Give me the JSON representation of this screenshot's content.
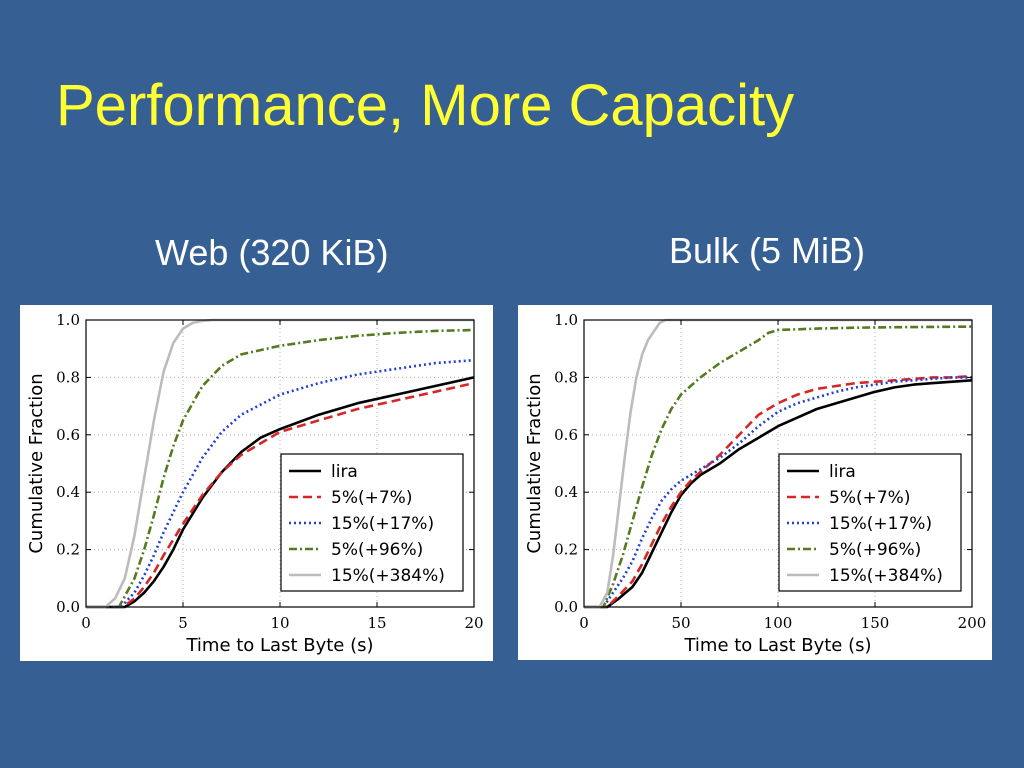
{
  "slide": {
    "title": "Performance, More Capacity",
    "subtitle_web": "Web (320 KiB)",
    "subtitle_bulk": "Bulk (5 MiB)"
  },
  "chart_data": [
    {
      "type": "line",
      "title": "Web (320 KiB)",
      "xlabel": "Time to Last Byte (s)",
      "ylabel": "Cumulative Fraction",
      "xlim": [
        0,
        20
      ],
      "ylim": [
        0,
        1
      ],
      "xticks": [
        0,
        5,
        10,
        15,
        20
      ],
      "yticks": [
        "0.0",
        "0.2",
        "0.4",
        "0.6",
        "0.8",
        "1.0"
      ],
      "grid": true,
      "legend_position": "lower-right",
      "series": [
        {
          "name": "lira",
          "color": "#000000",
          "dash": "solid",
          "x": [
            0,
            2.0,
            2.5,
            3.0,
            3.5,
            4.0,
            4.5,
            5.0,
            6.0,
            7.0,
            8.0,
            9.0,
            10.0,
            12.0,
            14.0,
            16.0,
            18.0,
            20.0
          ],
          "y": [
            0,
            0.0,
            0.02,
            0.05,
            0.09,
            0.14,
            0.2,
            0.27,
            0.38,
            0.47,
            0.54,
            0.59,
            0.62,
            0.67,
            0.71,
            0.74,
            0.77,
            0.8
          ]
        },
        {
          "name": "5%(+7%)",
          "color": "#d62728",
          "dash": "dashed",
          "x": [
            0,
            1.9,
            2.5,
            3.0,
            3.5,
            4.0,
            5.0,
            6.0,
            7.0,
            8.0,
            9.0,
            10.0,
            12.0,
            14.0,
            16.0,
            18.0,
            20.0
          ],
          "y": [
            0,
            0.0,
            0.03,
            0.07,
            0.12,
            0.18,
            0.29,
            0.39,
            0.47,
            0.53,
            0.57,
            0.61,
            0.65,
            0.69,
            0.72,
            0.75,
            0.78
          ]
        },
        {
          "name": "15%(+17%)",
          "color": "#1f3fd6",
          "dash": "dotted",
          "x": [
            0,
            1.8,
            2.5,
            3.0,
            3.5,
            4.0,
            5.0,
            6.0,
            7.0,
            8.0,
            10.0,
            12.0,
            14.0,
            16.0,
            18.0,
            20.0
          ],
          "y": [
            0,
            0.0,
            0.05,
            0.11,
            0.18,
            0.26,
            0.4,
            0.52,
            0.61,
            0.67,
            0.74,
            0.78,
            0.81,
            0.83,
            0.85,
            0.86
          ]
        },
        {
          "name": "5%(+96%)",
          "color": "#557a1f",
          "dash": "dashdot",
          "x": [
            0,
            1.7,
            2.5,
            3.0,
            3.5,
            4.0,
            4.5,
            5.0,
            6.0,
            7.0,
            8.0,
            10.0,
            12.0,
            14.0,
            16.0,
            18.0,
            20.0
          ],
          "y": [
            0,
            0.0,
            0.1,
            0.2,
            0.32,
            0.45,
            0.56,
            0.65,
            0.77,
            0.84,
            0.88,
            0.91,
            0.93,
            0.945,
            0.955,
            0.962,
            0.965
          ]
        },
        {
          "name": "15%(+384%)",
          "color": "#bcbcbc",
          "dash": "solid",
          "x": [
            0,
            1.0,
            1.5,
            2.0,
            2.5,
            3.0,
            3.5,
            4.0,
            4.5,
            5.0,
            5.5,
            6.0,
            6.5,
            7.0,
            20.0
          ],
          "y": [
            0,
            0.0,
            0.03,
            0.1,
            0.25,
            0.45,
            0.65,
            0.82,
            0.92,
            0.97,
            0.99,
            0.997,
            1.0,
            1.0,
            1.0
          ]
        }
      ]
    },
    {
      "type": "line",
      "title": "Bulk (5 MiB)",
      "xlabel": "Time to Last Byte (s)",
      "ylabel": "Cumulative Fraction",
      "xlim": [
        0,
        200
      ],
      "ylim": [
        0,
        1
      ],
      "xticks": [
        0,
        50,
        100,
        150,
        200
      ],
      "yticks": [
        "0.0",
        "0.2",
        "0.4",
        "0.6",
        "0.8",
        "1.0"
      ],
      "grid": true,
      "legend_position": "lower-right",
      "series": [
        {
          "name": "lira",
          "color": "#000000",
          "dash": "solid",
          "x": [
            0,
            12,
            18,
            25,
            30,
            35,
            40,
            45,
            50,
            55,
            60,
            70,
            80,
            90,
            100,
            110,
            120,
            130,
            140,
            150,
            160,
            170,
            180,
            190,
            200
          ],
          "y": [
            0,
            0.0,
            0.03,
            0.07,
            0.12,
            0.19,
            0.26,
            0.33,
            0.39,
            0.43,
            0.46,
            0.5,
            0.55,
            0.59,
            0.63,
            0.66,
            0.69,
            0.71,
            0.73,
            0.75,
            0.765,
            0.775,
            0.78,
            0.785,
            0.79
          ]
        },
        {
          "name": "5%(+7%)",
          "color": "#d62728",
          "dash": "dashed",
          "x": [
            0,
            12,
            18,
            25,
            30,
            35,
            40,
            45,
            50,
            55,
            60,
            70,
            80,
            90,
            100,
            110,
            120,
            130,
            140,
            150,
            160,
            170,
            180,
            190,
            200
          ],
          "y": [
            0,
            0.0,
            0.04,
            0.09,
            0.15,
            0.22,
            0.29,
            0.35,
            0.4,
            0.44,
            0.47,
            0.53,
            0.6,
            0.67,
            0.71,
            0.74,
            0.76,
            0.77,
            0.78,
            0.785,
            0.79,
            0.795,
            0.8,
            0.8,
            0.805
          ]
        },
        {
          "name": "15%(+17%)",
          "color": "#1f3fd6",
          "dash": "dotted",
          "x": [
            0,
            10,
            15,
            20,
            25,
            30,
            35,
            40,
            45,
            50,
            55,
            60,
            70,
            80,
            90,
            100,
            110,
            120,
            130,
            140,
            150,
            160,
            170,
            180,
            190,
            200
          ],
          "y": [
            0,
            0.0,
            0.05,
            0.1,
            0.16,
            0.24,
            0.31,
            0.37,
            0.41,
            0.44,
            0.46,
            0.48,
            0.52,
            0.57,
            0.63,
            0.68,
            0.71,
            0.73,
            0.75,
            0.765,
            0.775,
            0.785,
            0.79,
            0.795,
            0.8,
            0.8
          ]
        },
        {
          "name": "5%(+96%)",
          "color": "#557a1f",
          "dash": "dashdot",
          "x": [
            0,
            10,
            15,
            20,
            25,
            30,
            35,
            40,
            45,
            50,
            55,
            60,
            70,
            80,
            90,
            95,
            100,
            120,
            140,
            160,
            180,
            200
          ],
          "y": [
            0,
            0.0,
            0.08,
            0.18,
            0.3,
            0.42,
            0.53,
            0.62,
            0.69,
            0.74,
            0.77,
            0.8,
            0.85,
            0.89,
            0.93,
            0.955,
            0.965,
            0.97,
            0.973,
            0.975,
            0.976,
            0.977
          ]
        },
        {
          "name": "15%(+384%)",
          "color": "#bcbcbc",
          "dash": "solid",
          "x": [
            0,
            8,
            12,
            15,
            18,
            21,
            24,
            27,
            30,
            33,
            36,
            39,
            42,
            200
          ],
          "y": [
            0,
            0.0,
            0.05,
            0.18,
            0.35,
            0.52,
            0.68,
            0.8,
            0.88,
            0.93,
            0.96,
            0.99,
            1.0,
            1.0
          ]
        }
      ]
    }
  ]
}
